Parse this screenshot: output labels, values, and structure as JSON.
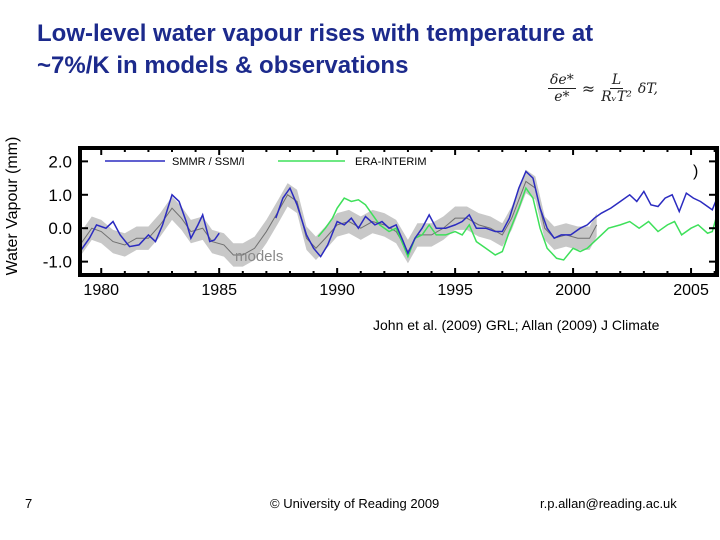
{
  "slide": {
    "title_line1": "Low-level water vapour rises with temperature at",
    "title_line2": "~7%/K in models & observations",
    "formula": {
      "lhs_num": "δe*",
      "lhs_den": "e*",
      "approx": "≈",
      "rhs_num": "L",
      "rhs_den": "RᵥT²",
      "tail": "δT,"
    },
    "citation": "John et al. (2009) GRL; Allan (2009) J Climate",
    "page_number": "7",
    "copyright": "© University of Reading 2009",
    "email": "r.p.allan@reading.ac.uk"
  },
  "chart_data": {
    "type": "line",
    "ylabel": "Water Vapour (mm)",
    "xlabel": "",
    "xlim": [
      1979.1,
      2006.1
    ],
    "ylim": [
      -1.4,
      2.4
    ],
    "xticks": [
      1980,
      1985,
      1990,
      1995,
      2000,
      2005
    ],
    "xtick_labels": [
      "1980",
      "1985",
      "1990",
      "1995",
      "2000",
      "2005"
    ],
    "yticks": [
      2.0,
      1.0,
      0.0,
      -1.0
    ],
    "ytick_labels": [
      "2.0",
      "1.0",
      "0.0",
      "-1.0"
    ],
    "legend_placement": "top-left",
    "annotations": {
      "models_label": "models",
      "paren": ")"
    },
    "colors": {
      "smmr": "#2b2bc0",
      "era": "#3ee05a",
      "models": "#707070",
      "models_band": "#c8c8c8"
    },
    "series": [
      {
        "name": "SMMR / SSM/I",
        "segments": [
          [
            [
              1979.1,
              -0.7
            ],
            [
              1979.5,
              -0.3
            ],
            [
              1979.8,
              0.1
            ],
            [
              1980.2,
              0.0
            ],
            [
              1980.5,
              0.2
            ],
            [
              1980.8,
              -0.2
            ],
            [
              1981.2,
              -0.55
            ],
            [
              1981.6,
              -0.5
            ],
            [
              1982,
              -0.2
            ],
            [
              1982.3,
              -0.4
            ],
            [
              1982.6,
              0.1
            ],
            [
              1983,
              1.0
            ],
            [
              1983.3,
              0.8
            ],
            [
              1983.6,
              0.2
            ],
            [
              1983.8,
              -0.3
            ],
            [
              1984.1,
              0.1
            ],
            [
              1984.3,
              0.4
            ],
            [
              1984.6,
              -0.4
            ],
            [
              1984.8,
              -0.35
            ],
            [
              1985,
              -0.15
            ]
          ],
          [
            [
              1987.4,
              0.3
            ],
            [
              1987.7,
              0.9
            ],
            [
              1988,
              1.2
            ],
            [
              1988.3,
              0.7
            ],
            [
              1988.7,
              -0.2
            ],
            [
              1989,
              -0.6
            ],
            [
              1989.3,
              -0.85
            ],
            [
              1989.6,
              -0.5
            ],
            [
              1990,
              0.2
            ],
            [
              1990.3,
              0.1
            ],
            [
              1990.6,
              0.3
            ],
            [
              1990.9,
              0.0
            ],
            [
              1991.2,
              0.35
            ],
            [
              1991.6,
              0.1
            ],
            [
              1991.9,
              0.2
            ],
            [
              1992.2,
              0.0
            ],
            [
              1992.5,
              0.1
            ],
            [
              1992.8,
              -0.4
            ],
            [
              1993,
              -0.75
            ],
            [
              1993.3,
              -0.3
            ],
            [
              1993.6,
              0.0
            ],
            [
              1993.9,
              0.4
            ],
            [
              1994.2,
              0.0
            ],
            [
              1994.6,
              0.0
            ],
            [
              1995,
              0.1
            ],
            [
              1995.3,
              0.2
            ],
            [
              1995.6,
              0.4
            ],
            [
              1995.9,
              0.0
            ],
            [
              1996.3,
              0.0
            ],
            [
              1996.7,
              -0.1
            ],
            [
              1997,
              -0.1
            ],
            [
              1997.3,
              0.3
            ],
            [
              1997.7,
              1.2
            ],
            [
              1998,
              1.7
            ],
            [
              1998.3,
              1.5
            ],
            [
              1998.6,
              0.6
            ],
            [
              1998.9,
              0.0
            ],
            [
              1999.2,
              -0.3
            ],
            [
              1999.5,
              -0.2
            ],
            [
              1999.9,
              -0.2
            ],
            [
              2000.3,
              0.0
            ],
            [
              2000.6,
              0.1
            ],
            [
              2000.9,
              0.3
            ],
            [
              2001.2,
              0.45
            ],
            [
              2001.6,
              0.6
            ],
            [
              2002,
              0.8
            ],
            [
              2002.4,
              1.0
            ],
            [
              2002.7,
              0.8
            ],
            [
              2003,
              1.1
            ],
            [
              2003.3,
              0.7
            ],
            [
              2003.6,
              0.65
            ],
            [
              2003.9,
              0.9
            ],
            [
              2004.2,
              1.0
            ],
            [
              2004.5,
              0.5
            ],
            [
              2004.8,
              1.05
            ],
            [
              2005.1,
              0.9
            ],
            [
              2005.4,
              0.8
            ],
            [
              2005.7,
              0.65
            ],
            [
              2005.9,
              0.55
            ],
            [
              2006.1,
              0.9
            ]
          ]
        ]
      },
      {
        "name": "ERA-INTERIM",
        "segments": [
          [
            [
              1989.2,
              -0.25
            ],
            [
              1989.5,
              0.0
            ],
            [
              1989.8,
              0.3
            ],
            [
              1990,
              0.6
            ],
            [
              1990.3,
              0.9
            ],
            [
              1990.6,
              0.8
            ],
            [
              1990.9,
              0.85
            ],
            [
              1991.2,
              0.7
            ],
            [
              1991.5,
              0.4
            ],
            [
              1991.8,
              0.1
            ],
            [
              1992.2,
              -0.1
            ],
            [
              1992.5,
              0.0
            ],
            [
              1992.8,
              -0.5
            ],
            [
              1993,
              -0.85
            ],
            [
              1993.3,
              -0.3
            ],
            [
              1993.6,
              -0.2
            ],
            [
              1993.9,
              0.1
            ],
            [
              1994.2,
              -0.2
            ],
            [
              1994.6,
              -0.2
            ],
            [
              1995,
              -0.1
            ],
            [
              1995.3,
              -0.2
            ],
            [
              1995.6,
              0.1
            ],
            [
              1995.9,
              -0.4
            ],
            [
              1996.3,
              -0.6
            ],
            [
              1996.7,
              -0.8
            ],
            [
              1997,
              -0.7
            ],
            [
              1997.3,
              -0.1
            ],
            [
              1997.7,
              0.6
            ],
            [
              1998,
              1.2
            ],
            [
              1998.3,
              0.9
            ],
            [
              1998.6,
              0.0
            ],
            [
              1998.9,
              -0.6
            ],
            [
              1999.3,
              -0.9
            ],
            [
              1999.6,
              -0.95
            ],
            [
              2000,
              -0.6
            ],
            [
              2000.3,
              -0.7
            ],
            [
              2000.6,
              -0.6
            ],
            [
              2000.9,
              -0.4
            ],
            [
              2001.2,
              -0.2
            ],
            [
              2001.5,
              0.0
            ],
            [
              2002,
              0.1
            ],
            [
              2002.4,
              0.2
            ],
            [
              2002.8,
              0.0
            ],
            [
              2003.2,
              0.2
            ],
            [
              2003.6,
              -0.1
            ],
            [
              2004,
              0.1
            ],
            [
              2004.3,
              0.2
            ],
            [
              2004.6,
              -0.2
            ],
            [
              2005,
              0.0
            ],
            [
              2005.3,
              0.1
            ],
            [
              2005.7,
              -0.15
            ],
            [
              2005.9,
              -0.1
            ],
            [
              2006.1,
              0.4
            ]
          ]
        ]
      },
      {
        "name": "models",
        "spread": 0.35,
        "segments": [
          [
            [
              1979.1,
              -0.5
            ],
            [
              1979.6,
              0.0
            ],
            [
              1980,
              -0.1
            ],
            [
              1980.5,
              -0.4
            ],
            [
              1981,
              -0.5
            ],
            [
              1981.5,
              -0.3
            ],
            [
              1982,
              -0.3
            ],
            [
              1982.5,
              0.1
            ],
            [
              1983,
              0.6
            ],
            [
              1983.4,
              0.3
            ],
            [
              1983.8,
              -0.1
            ],
            [
              1984.3,
              0.0
            ],
            [
              1984.7,
              -0.4
            ],
            [
              1985.2,
              -0.5
            ],
            [
              1985.6,
              -0.8
            ],
            [
              1986,
              -0.8
            ],
            [
              1986.5,
              -0.6
            ],
            [
              1987,
              -0.1
            ],
            [
              1987.5,
              0.5
            ],
            [
              1987.9,
              1.0
            ],
            [
              1988.3,
              0.8
            ],
            [
              1988.7,
              -0.3
            ],
            [
              1989.1,
              -0.6
            ],
            [
              1989.5,
              -0.3
            ],
            [
              1990,
              0.1
            ],
            [
              1990.5,
              0.2
            ],
            [
              1991,
              0.0
            ],
            [
              1991.5,
              0.2
            ],
            [
              1992,
              0.1
            ],
            [
              1992.5,
              -0.1
            ],
            [
              1993,
              -0.7
            ],
            [
              1993.4,
              -0.2
            ],
            [
              1994,
              -0.2
            ],
            [
              1994.5,
              0.0
            ],
            [
              1995,
              0.3
            ],
            [
              1995.5,
              0.3
            ],
            [
              1996,
              0.1
            ],
            [
              1996.5,
              0.0
            ],
            [
              1997,
              -0.2
            ],
            [
              1997.4,
              0.3
            ],
            [
              1998,
              1.4
            ],
            [
              1998.4,
              1.2
            ],
            [
              1998.8,
              0.0
            ],
            [
              1999.2,
              -0.3
            ],
            [
              1999.7,
              -0.2
            ],
            [
              2000.2,
              -0.3
            ],
            [
              2000.7,
              -0.3
            ],
            [
              2001,
              0.1
            ]
          ]
        ]
      }
    ]
  }
}
